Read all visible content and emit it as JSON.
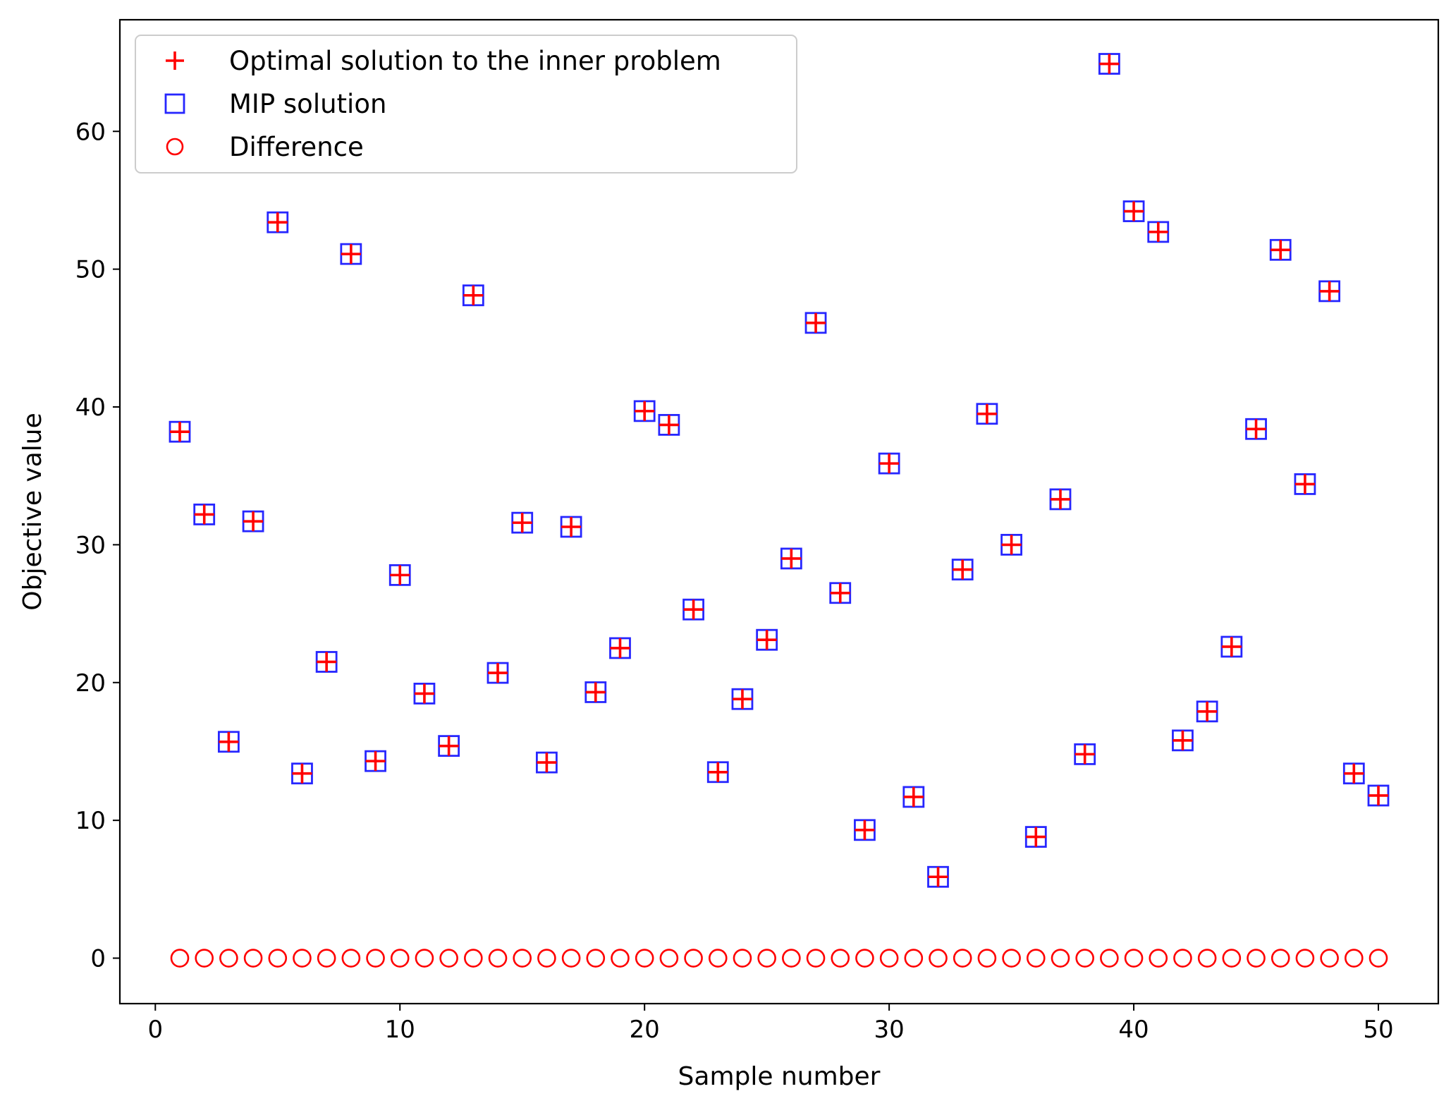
{
  "chart_data": {
    "type": "scatter",
    "title": "",
    "xlabel": "Sample number",
    "ylabel": "Objective value",
    "xlim": [
      -1.45,
      52.45
    ],
    "ylim": [
      -3.3,
      68.1
    ],
    "xticks": [
      0,
      10,
      20,
      30,
      40,
      50
    ],
    "yticks": [
      0,
      10,
      20,
      30,
      40,
      50,
      60
    ],
    "grid": false,
    "legend_position": "upper-left",
    "x": [
      1,
      2,
      3,
      4,
      5,
      6,
      7,
      8,
      9,
      10,
      11,
      12,
      13,
      14,
      15,
      16,
      17,
      18,
      19,
      20,
      21,
      22,
      23,
      24,
      25,
      26,
      27,
      28,
      29,
      30,
      31,
      32,
      33,
      34,
      35,
      36,
      37,
      38,
      39,
      40,
      41,
      42,
      43,
      44,
      45,
      46,
      47,
      48,
      49,
      50
    ],
    "series": [
      {
        "name": "Optimal solution to the inner problem",
        "marker": "plus",
        "color": "#ff0000",
        "values": [
          38.2,
          32.2,
          15.7,
          31.7,
          53.4,
          13.4,
          21.5,
          51.1,
          14.3,
          27.8,
          19.2,
          15.4,
          48.1,
          20.7,
          31.6,
          14.2,
          31.3,
          19.3,
          22.5,
          39.7,
          38.7,
          25.3,
          13.5,
          18.8,
          23.1,
          29.0,
          46.1,
          26.5,
          9.3,
          35.9,
          11.7,
          5.9,
          28.2,
          39.5,
          30.0,
          8.8,
          33.3,
          14.8,
          64.9,
          54.2,
          52.7,
          15.8,
          17.9,
          22.6,
          38.4,
          51.4,
          34.4,
          48.4,
          13.4,
          11.8
        ]
      },
      {
        "name": "MIP solution",
        "marker": "square",
        "color": "#0000ff",
        "values": [
          38.2,
          32.2,
          15.7,
          31.7,
          53.4,
          13.4,
          21.5,
          51.1,
          14.3,
          27.8,
          19.2,
          15.4,
          48.1,
          20.7,
          31.6,
          14.2,
          31.3,
          19.3,
          22.5,
          39.7,
          38.7,
          25.3,
          13.5,
          18.8,
          23.1,
          29.0,
          46.1,
          26.5,
          9.3,
          35.9,
          11.7,
          5.9,
          28.2,
          39.5,
          30.0,
          8.8,
          33.3,
          14.8,
          64.9,
          54.2,
          52.7,
          15.8,
          17.9,
          22.6,
          38.4,
          51.4,
          34.4,
          48.4,
          13.4,
          11.8
        ]
      },
      {
        "name": "Difference",
        "marker": "circle",
        "color": "#ff0000",
        "values": [
          0,
          0,
          0,
          0,
          0,
          0,
          0,
          0,
          0,
          0,
          0,
          0,
          0,
          0,
          0,
          0,
          0,
          0,
          0,
          0,
          0,
          0,
          0,
          0,
          0,
          0,
          0,
          0,
          0,
          0,
          0,
          0,
          0,
          0,
          0,
          0,
          0,
          0,
          0,
          0,
          0,
          0,
          0,
          0,
          0,
          0,
          0,
          0,
          0,
          0
        ]
      }
    ]
  }
}
